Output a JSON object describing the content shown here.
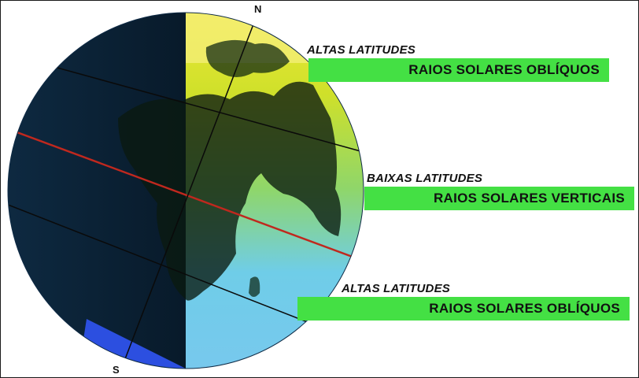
{
  "poles": {
    "north": "N",
    "south": "S"
  },
  "bands": [
    {
      "heading": "ALTAS LATITUDES",
      "label": "RAIOS SOLARES OBLÍQUOS"
    },
    {
      "heading": "BAIXAS LATITUDES",
      "label": "RAIOS SOLARES VERTICAIS"
    },
    {
      "heading": "ALTAS LATITUDES",
      "label": "RAIOS SOLARES OBLÍQUOS"
    }
  ],
  "colors": {
    "banner": "#44e044",
    "night_side": "#0b2236",
    "day_low": "#7cd3f0",
    "day_high": "#e6e22a",
    "equator": "#c0281e"
  }
}
